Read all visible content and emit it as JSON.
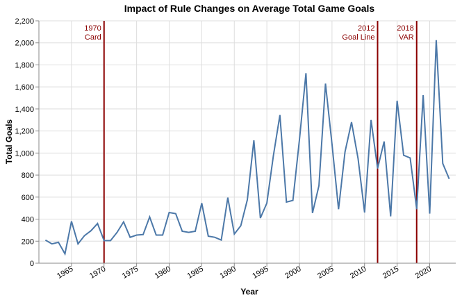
{
  "chart_data": {
    "type": "line",
    "title": "Impact of Rule Changes on Average Total Game Goals",
    "xlabel": "Year",
    "ylabel": "Total Goals",
    "xlim": [
      1960,
      2024
    ],
    "ylim": [
      0,
      2200
    ],
    "x_ticks": [
      1965,
      1970,
      1975,
      1980,
      1985,
      1990,
      1995,
      2000,
      2005,
      2010,
      2015,
      2020
    ],
    "y_ticks": [
      0,
      200,
      400,
      600,
      800,
      1000,
      1200,
      1400,
      1600,
      1800,
      2000,
      2200
    ],
    "y_tick_labels": [
      "0",
      "200",
      "400",
      "600",
      "800",
      "1,000",
      "1,200",
      "1,400",
      "1,600",
      "1,800",
      "2,000",
      "2,200"
    ],
    "grid": true,
    "series_color": "#4c78a8",
    "rule_color": "#8b0000",
    "x": [
      1961,
      1962,
      1963,
      1964,
      1965,
      1966,
      1967,
      1968,
      1969,
      1970,
      1971,
      1972,
      1973,
      1974,
      1975,
      1976,
      1977,
      1978,
      1979,
      1980,
      1981,
      1982,
      1983,
      1984,
      1985,
      1986,
      1987,
      1988,
      1989,
      1990,
      1991,
      1992,
      1993,
      1994,
      1995,
      1996,
      1997,
      1998,
      1999,
      2000,
      2001,
      2002,
      2003,
      2004,
      2005,
      2006,
      2007,
      2008,
      2009,
      2010,
      2011,
      2012,
      2013,
      2014,
      2015,
      2016,
      2017,
      2018,
      2019,
      2020,
      2021,
      2022,
      2023
    ],
    "y": [
      210,
      175,
      190,
      85,
      380,
      175,
      250,
      295,
      360,
      205,
      205,
      280,
      375,
      235,
      255,
      260,
      420,
      255,
      255,
      460,
      450,
      290,
      280,
      290,
      545,
      245,
      235,
      210,
      595,
      265,
      340,
      575,
      1115,
      410,
      545,
      975,
      1345,
      555,
      570,
      1120,
      1725,
      455,
      705,
      1630,
      1080,
      490,
      1010,
      1280,
      950,
      460,
      1300,
      860,
      1105,
      425,
      1475,
      980,
      955,
      490,
      1525,
      450,
      2025,
      905,
      765
    ],
    "annotations": [
      {
        "x": 1970,
        "label_year": "1970",
        "label_name": "Card"
      },
      {
        "x": 2012,
        "label_year": "2012",
        "label_name": "Goal Line"
      },
      {
        "x": 2018,
        "label_year": "2018",
        "label_name": "VAR"
      }
    ]
  }
}
